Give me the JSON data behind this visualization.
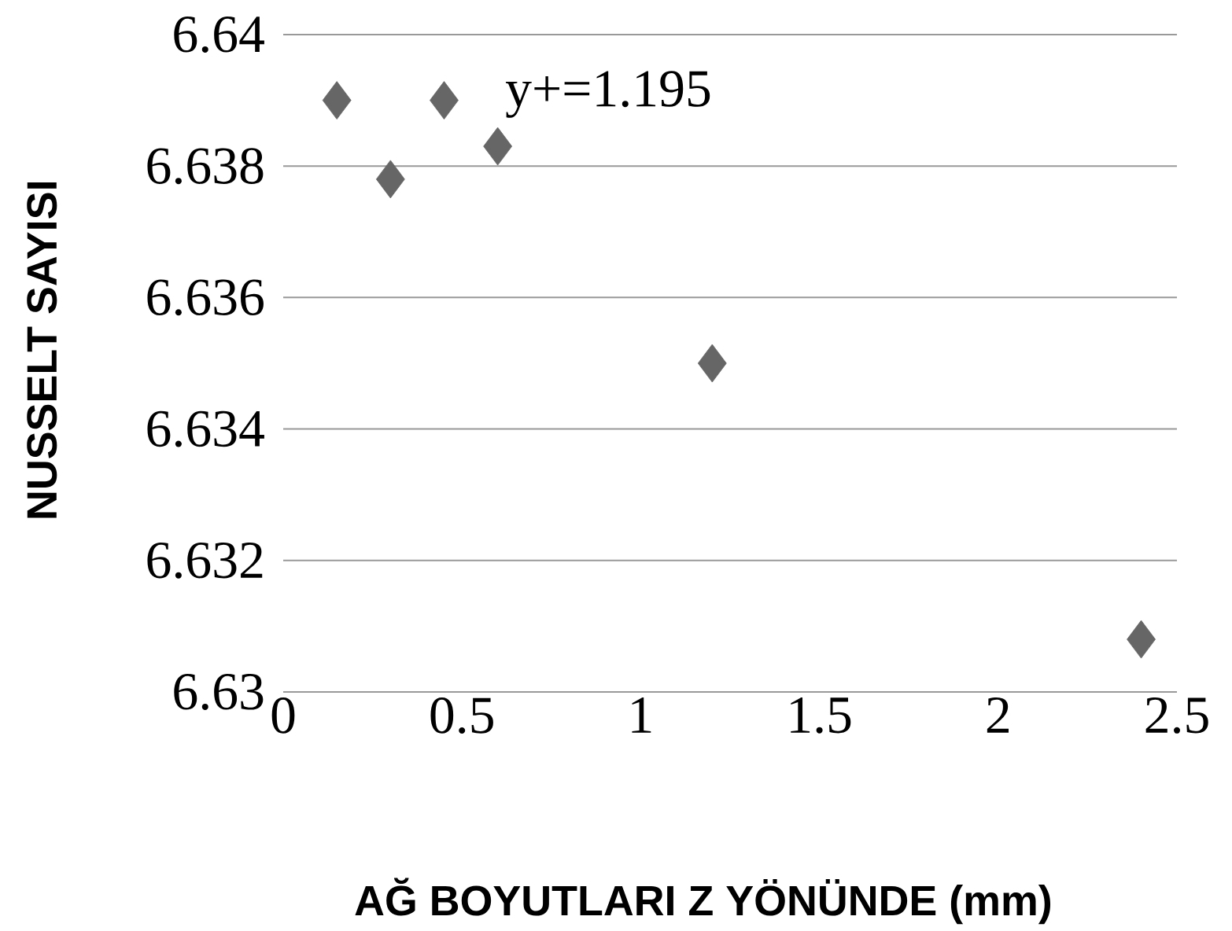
{
  "chart_data": {
    "type": "scatter",
    "xlabel": "AĞ BOYUTLARI Z YÖNÜNDE (mm)",
    "ylabel": "NUSSELT SAYISI",
    "annotations": [
      "y+=1.195"
    ],
    "x": [
      0.15,
      0.3,
      0.45,
      0.6,
      1.2,
      2.4
    ],
    "series": [
      {
        "color": "#666666",
        "values": [
          6.639,
          6.6378,
          6.639,
          6.6383,
          6.635,
          6.6308
        ]
      }
    ],
    "xlim": [
      0,
      2.5
    ],
    "xticks": [
      0,
      0.5,
      1,
      1.5,
      2,
      2.5
    ],
    "ylim": [
      6.63,
      6.64
    ],
    "yticks": [
      {
        "value": 6.63,
        "label": "6.63"
      },
      {
        "value": 6.632,
        "label": "6.632"
      },
      {
        "value": 6.634,
        "label": "6.634"
      },
      {
        "value": 6.636,
        "label": "6.636"
      },
      {
        "value": 6.638,
        "label": "6.638"
      },
      {
        "value": 6.64,
        "label": "6.64"
      }
    ],
    "grid": "y",
    "marker": "diamond"
  }
}
